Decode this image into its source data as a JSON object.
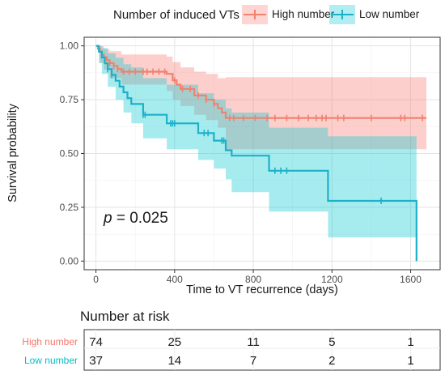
{
  "chart_data": {
    "type": "line",
    "subtype": "kaplan-meier survival curve with confidence bands",
    "legend": {
      "title": "Number of induced VTs",
      "placement": "top",
      "entries": [
        "High number",
        "Low number"
      ]
    },
    "xlabel": "Time to VT recurrence (days)",
    "ylabel": "Survival probability",
    "xlim": [
      -60,
      1750
    ],
    "ylim": [
      -0.04,
      1.04
    ],
    "xticks": [
      0,
      400,
      800,
      1200,
      1600
    ],
    "xtick_labels": [
      "0",
      "400",
      "800",
      "1200",
      "1600"
    ],
    "yticks": [
      0.0,
      0.25,
      0.5,
      0.75,
      1.0
    ],
    "ytick_labels": [
      "0.00",
      "0.25",
      "0.50",
      "0.75",
      "1.00"
    ],
    "grid": true,
    "background": "#ffffff",
    "annotation": {
      "prefix": "p",
      "text": " = 0.025"
    },
    "series": [
      {
        "name": "High number",
        "color": "#F0826F",
        "band_color": "#F8766D",
        "end_x": 1680,
        "steps": [
          [
            0,
            1.0
          ],
          [
            10,
            0.987
          ],
          [
            20,
            0.973
          ],
          [
            30,
            0.96
          ],
          [
            40,
            0.947
          ],
          [
            55,
            0.933
          ],
          [
            70,
            0.92
          ],
          [
            90,
            0.907
          ],
          [
            110,
            0.893
          ],
          [
            130,
            0.88
          ],
          [
            360,
            0.87
          ],
          [
            390,
            0.84
          ],
          [
            410,
            0.82
          ],
          [
            430,
            0.8
          ],
          [
            500,
            0.77
          ],
          [
            560,
            0.75
          ],
          [
            600,
            0.73
          ],
          [
            620,
            0.71
          ],
          [
            640,
            0.69
          ],
          [
            660,
            0.665
          ]
        ],
        "upper": [
          [
            0,
            1.0
          ],
          [
            40,
            0.985
          ],
          [
            70,
            0.975
          ],
          [
            130,
            0.96
          ],
          [
            360,
            0.95
          ],
          [
            390,
            0.925
          ],
          [
            430,
            0.9
          ],
          [
            500,
            0.88
          ],
          [
            560,
            0.87
          ],
          [
            620,
            0.85
          ],
          [
            660,
            0.855
          ]
        ],
        "lower": [
          [
            0,
            1.0
          ],
          [
            20,
            0.92
          ],
          [
            40,
            0.89
          ],
          [
            70,
            0.85
          ],
          [
            130,
            0.82
          ],
          [
            360,
            0.79
          ],
          [
            390,
            0.75
          ],
          [
            430,
            0.72
          ],
          [
            500,
            0.68
          ],
          [
            560,
            0.655
          ],
          [
            620,
            0.62
          ],
          [
            660,
            0.52
          ]
        ],
        "censor_x": [
          70,
          90,
          110,
          140,
          170,
          200,
          240,
          260,
          290,
          320,
          350,
          400,
          440,
          480,
          520,
          560,
          600,
          680,
          700,
          750,
          810,
          870,
          910,
          970,
          1030,
          1080,
          1120,
          1150,
          1170,
          1230,
          1260,
          1400,
          1550,
          1570,
          1660
        ]
      },
      {
        "name": "Low number",
        "color": "#1CB0C9",
        "band_color": "#00C8D0",
        "end_x": 1630,
        "steps": [
          [
            0,
            1.0
          ],
          [
            15,
            0.973
          ],
          [
            30,
            0.946
          ],
          [
            45,
            0.919
          ],
          [
            60,
            0.892
          ],
          [
            80,
            0.865
          ],
          [
            100,
            0.838
          ],
          [
            120,
            0.811
          ],
          [
            140,
            0.784
          ],
          [
            160,
            0.757
          ],
          [
            180,
            0.73
          ],
          [
            240,
            0.68
          ],
          [
            360,
            0.64
          ],
          [
            520,
            0.595
          ],
          [
            600,
            0.56
          ],
          [
            660,
            0.515
          ],
          [
            690,
            0.49
          ],
          [
            880,
            0.42
          ],
          [
            1180,
            0.28
          ],
          [
            1630,
            0.0
          ]
        ],
        "upper": [
          [
            0,
            1.0
          ],
          [
            30,
            0.99
          ],
          [
            60,
            0.965
          ],
          [
            100,
            0.945
          ],
          [
            140,
            0.915
          ],
          [
            180,
            0.9
          ],
          [
            240,
            0.85
          ],
          [
            360,
            0.82
          ],
          [
            520,
            0.78
          ],
          [
            600,
            0.75
          ],
          [
            660,
            0.71
          ],
          [
            690,
            0.69
          ],
          [
            880,
            0.62
          ],
          [
            1180,
            0.58
          ],
          [
            1630,
            0.58
          ]
        ],
        "lower": [
          [
            0,
            1.0
          ],
          [
            15,
            0.92
          ],
          [
            30,
            0.87
          ],
          [
            60,
            0.81
          ],
          [
            100,
            0.75
          ],
          [
            140,
            0.69
          ],
          [
            180,
            0.64
          ],
          [
            240,
            0.57
          ],
          [
            360,
            0.52
          ],
          [
            520,
            0.47
          ],
          [
            600,
            0.43
          ],
          [
            660,
            0.38
          ],
          [
            690,
            0.32
          ],
          [
            880,
            0.23
          ],
          [
            1180,
            0.11
          ],
          [
            1630,
            0.11
          ]
        ],
        "censor_x": [
          60,
          80,
          240,
          250,
          380,
          390,
          400,
          550,
          570,
          640,
          650,
          910,
          940,
          970,
          1450
        ]
      }
    ],
    "risk_table": {
      "title": "Number at risk",
      "time_points": [
        0,
        400,
        800,
        1200,
        1600
      ],
      "rows": [
        {
          "label": "High number",
          "color": "#F8766D",
          "values": [
            "74",
            "25",
            "11",
            "5",
            "1"
          ]
        },
        {
          "label": "Low number",
          "color": "#00BFC4",
          "values": [
            "37",
            "14",
            "7",
            "2",
            "1"
          ]
        }
      ]
    }
  }
}
